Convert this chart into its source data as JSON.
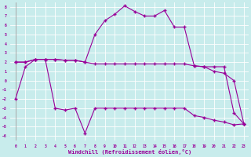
{
  "xlabel": "Windchill (Refroidissement éolien,°C)",
  "bg_color": "#c8ecec",
  "line_color": "#990099",
  "grid_color": "#ffffff",
  "xlim": [
    -0.5,
    23.5
  ],
  "ylim": [
    -6.5,
    8.5
  ],
  "xticks": [
    0,
    1,
    2,
    3,
    4,
    5,
    6,
    7,
    8,
    9,
    10,
    11,
    12,
    13,
    14,
    15,
    16,
    17,
    18,
    19,
    20,
    21,
    22,
    23
  ],
  "yticks": [
    -6,
    -5,
    -4,
    -3,
    -2,
    -1,
    0,
    1,
    2,
    3,
    4,
    5,
    6,
    7,
    8
  ],
  "line_top_x": [
    0,
    1,
    2,
    3,
    4,
    5,
    6,
    7,
    8,
    9,
    10,
    11,
    12,
    13,
    14,
    15,
    16,
    17,
    18,
    19,
    20,
    21,
    22,
    23
  ],
  "line_top_y": [
    2.0,
    2.0,
    2.3,
    2.3,
    2.3,
    2.2,
    2.2,
    2.0,
    5.0,
    6.5,
    7.2,
    8.1,
    7.5,
    7.0,
    7.0,
    7.6,
    5.8,
    5.8,
    1.6,
    1.5,
    1.5,
    1.5,
    -3.5,
    -4.7
  ],
  "line_mid_x": [
    0,
    1,
    2,
    3,
    4,
    5,
    6,
    7,
    8,
    9,
    10,
    11,
    12,
    13,
    14,
    15,
    16,
    17,
    18,
    19,
    20,
    21,
    22,
    23
  ],
  "line_mid_y": [
    2.0,
    2.0,
    2.3,
    2.3,
    2.3,
    2.2,
    2.2,
    2.0,
    1.8,
    1.8,
    1.8,
    1.8,
    1.8,
    1.8,
    1.8,
    1.8,
    1.8,
    1.8,
    1.6,
    1.5,
    1.0,
    0.8,
    0.0,
    -4.7
  ],
  "line_bot_x": [
    0,
    1,
    2,
    3,
    4,
    5,
    6,
    7,
    8,
    9,
    10,
    11,
    12,
    13,
    14,
    15,
    16,
    17,
    18,
    19,
    20,
    21,
    22,
    23
  ],
  "line_bot_y": [
    -2.0,
    1.5,
    2.3,
    2.3,
    -3.0,
    -3.2,
    -3.0,
    -5.7,
    -3.0,
    -3.0,
    -3.0,
    -3.0,
    -3.0,
    -3.0,
    -3.0,
    -3.0,
    -3.0,
    -3.0,
    -3.8,
    -4.0,
    -4.3,
    -4.5,
    -4.8,
    -4.7
  ]
}
